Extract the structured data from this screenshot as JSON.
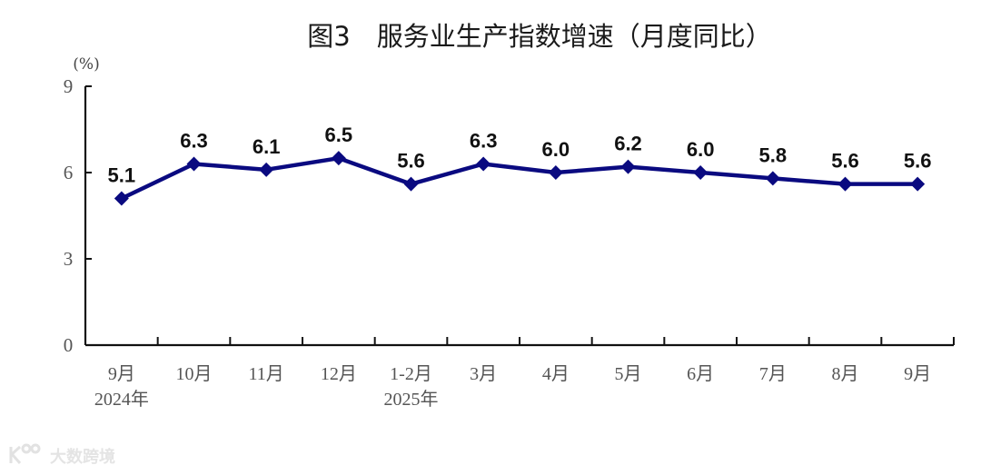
{
  "title": "图3　服务业生产指数增速（月度同比）",
  "watermark": "大数跨境",
  "chart_data": {
    "type": "line",
    "title": "图3　服务业生产指数增速（月度同比）",
    "xlabel": "",
    "ylabel": "(%)",
    "ylim": [
      0,
      9
    ],
    "yticks": [
      0,
      3,
      6,
      9
    ],
    "grid": false,
    "legend": null,
    "categories": [
      "9月\n2024年",
      "10月",
      "11月",
      "12月",
      "1-2月\n2025年",
      "3月",
      "4月",
      "5月",
      "6月",
      "7月",
      "8月",
      "9月"
    ],
    "category_lines": [
      [
        "9月",
        "2024年"
      ],
      [
        "10月",
        ""
      ],
      [
        "11月",
        ""
      ],
      [
        "12月",
        ""
      ],
      [
        "1-2月",
        "2025年"
      ],
      [
        "3月",
        ""
      ],
      [
        "4月",
        ""
      ],
      [
        "5月",
        ""
      ],
      [
        "6月",
        ""
      ],
      [
        "7月",
        ""
      ],
      [
        "8月",
        ""
      ],
      [
        "9月",
        ""
      ]
    ],
    "series": [
      {
        "name": "服务业生产指数增速",
        "color": "#0a0a80",
        "marker": "diamond",
        "values": [
          5.1,
          6.3,
          6.1,
          6.5,
          5.6,
          6.3,
          6.0,
          6.2,
          6.0,
          5.8,
          5.6,
          5.6
        ],
        "labels": [
          "5.1",
          "6.3",
          "6.1",
          "6.5",
          "5.6",
          "6.3",
          "6.0",
          "6.2",
          "6.0",
          "5.8",
          "5.6",
          "5.6"
        ]
      }
    ]
  }
}
